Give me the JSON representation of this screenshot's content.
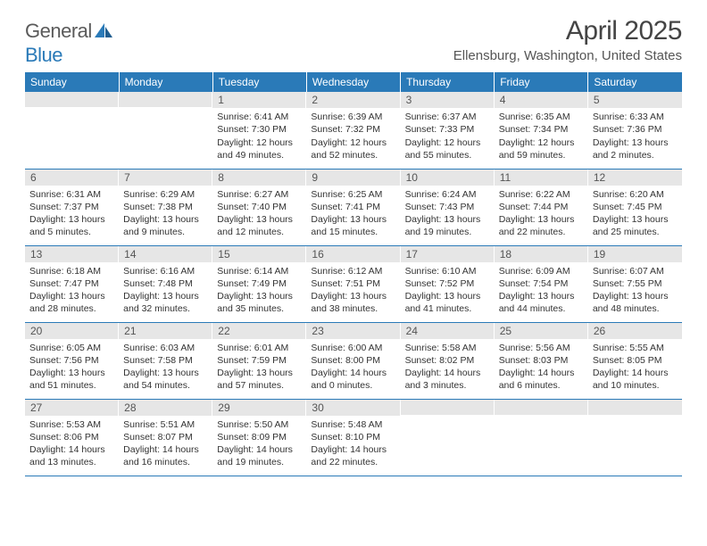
{
  "brand": {
    "word1": "General",
    "word2": "Blue"
  },
  "title": "April 2025",
  "location": "Ellensburg, Washington, United States",
  "colors": {
    "header_bg": "#2a7ab8",
    "header_text": "#ffffff",
    "daynum_bg": "#e6e6e6",
    "border": "#2a7ab8",
    "logo_gray": "#5a5a5a",
    "logo_blue": "#2a7ab8"
  },
  "weekdays": [
    "Sunday",
    "Monday",
    "Tuesday",
    "Wednesday",
    "Thursday",
    "Friday",
    "Saturday"
  ],
  "weeks": [
    [
      {
        "num": "",
        "sunrise": "",
        "sunset": "",
        "daylight": ""
      },
      {
        "num": "",
        "sunrise": "",
        "sunset": "",
        "daylight": ""
      },
      {
        "num": "1",
        "sunrise": "Sunrise: 6:41 AM",
        "sunset": "Sunset: 7:30 PM",
        "daylight": "Daylight: 12 hours and 49 minutes."
      },
      {
        "num": "2",
        "sunrise": "Sunrise: 6:39 AM",
        "sunset": "Sunset: 7:32 PM",
        "daylight": "Daylight: 12 hours and 52 minutes."
      },
      {
        "num": "3",
        "sunrise": "Sunrise: 6:37 AM",
        "sunset": "Sunset: 7:33 PM",
        "daylight": "Daylight: 12 hours and 55 minutes."
      },
      {
        "num": "4",
        "sunrise": "Sunrise: 6:35 AM",
        "sunset": "Sunset: 7:34 PM",
        "daylight": "Daylight: 12 hours and 59 minutes."
      },
      {
        "num": "5",
        "sunrise": "Sunrise: 6:33 AM",
        "sunset": "Sunset: 7:36 PM",
        "daylight": "Daylight: 13 hours and 2 minutes."
      }
    ],
    [
      {
        "num": "6",
        "sunrise": "Sunrise: 6:31 AM",
        "sunset": "Sunset: 7:37 PM",
        "daylight": "Daylight: 13 hours and 5 minutes."
      },
      {
        "num": "7",
        "sunrise": "Sunrise: 6:29 AM",
        "sunset": "Sunset: 7:38 PM",
        "daylight": "Daylight: 13 hours and 9 minutes."
      },
      {
        "num": "8",
        "sunrise": "Sunrise: 6:27 AM",
        "sunset": "Sunset: 7:40 PM",
        "daylight": "Daylight: 13 hours and 12 minutes."
      },
      {
        "num": "9",
        "sunrise": "Sunrise: 6:25 AM",
        "sunset": "Sunset: 7:41 PM",
        "daylight": "Daylight: 13 hours and 15 minutes."
      },
      {
        "num": "10",
        "sunrise": "Sunrise: 6:24 AM",
        "sunset": "Sunset: 7:43 PM",
        "daylight": "Daylight: 13 hours and 19 minutes."
      },
      {
        "num": "11",
        "sunrise": "Sunrise: 6:22 AM",
        "sunset": "Sunset: 7:44 PM",
        "daylight": "Daylight: 13 hours and 22 minutes."
      },
      {
        "num": "12",
        "sunrise": "Sunrise: 6:20 AM",
        "sunset": "Sunset: 7:45 PM",
        "daylight": "Daylight: 13 hours and 25 minutes."
      }
    ],
    [
      {
        "num": "13",
        "sunrise": "Sunrise: 6:18 AM",
        "sunset": "Sunset: 7:47 PM",
        "daylight": "Daylight: 13 hours and 28 minutes."
      },
      {
        "num": "14",
        "sunrise": "Sunrise: 6:16 AM",
        "sunset": "Sunset: 7:48 PM",
        "daylight": "Daylight: 13 hours and 32 minutes."
      },
      {
        "num": "15",
        "sunrise": "Sunrise: 6:14 AM",
        "sunset": "Sunset: 7:49 PM",
        "daylight": "Daylight: 13 hours and 35 minutes."
      },
      {
        "num": "16",
        "sunrise": "Sunrise: 6:12 AM",
        "sunset": "Sunset: 7:51 PM",
        "daylight": "Daylight: 13 hours and 38 minutes."
      },
      {
        "num": "17",
        "sunrise": "Sunrise: 6:10 AM",
        "sunset": "Sunset: 7:52 PM",
        "daylight": "Daylight: 13 hours and 41 minutes."
      },
      {
        "num": "18",
        "sunrise": "Sunrise: 6:09 AM",
        "sunset": "Sunset: 7:54 PM",
        "daylight": "Daylight: 13 hours and 44 minutes."
      },
      {
        "num": "19",
        "sunrise": "Sunrise: 6:07 AM",
        "sunset": "Sunset: 7:55 PM",
        "daylight": "Daylight: 13 hours and 48 minutes."
      }
    ],
    [
      {
        "num": "20",
        "sunrise": "Sunrise: 6:05 AM",
        "sunset": "Sunset: 7:56 PM",
        "daylight": "Daylight: 13 hours and 51 minutes."
      },
      {
        "num": "21",
        "sunrise": "Sunrise: 6:03 AM",
        "sunset": "Sunset: 7:58 PM",
        "daylight": "Daylight: 13 hours and 54 minutes."
      },
      {
        "num": "22",
        "sunrise": "Sunrise: 6:01 AM",
        "sunset": "Sunset: 7:59 PM",
        "daylight": "Daylight: 13 hours and 57 minutes."
      },
      {
        "num": "23",
        "sunrise": "Sunrise: 6:00 AM",
        "sunset": "Sunset: 8:00 PM",
        "daylight": "Daylight: 14 hours and 0 minutes."
      },
      {
        "num": "24",
        "sunrise": "Sunrise: 5:58 AM",
        "sunset": "Sunset: 8:02 PM",
        "daylight": "Daylight: 14 hours and 3 minutes."
      },
      {
        "num": "25",
        "sunrise": "Sunrise: 5:56 AM",
        "sunset": "Sunset: 8:03 PM",
        "daylight": "Daylight: 14 hours and 6 minutes."
      },
      {
        "num": "26",
        "sunrise": "Sunrise: 5:55 AM",
        "sunset": "Sunset: 8:05 PM",
        "daylight": "Daylight: 14 hours and 10 minutes."
      }
    ],
    [
      {
        "num": "27",
        "sunrise": "Sunrise: 5:53 AM",
        "sunset": "Sunset: 8:06 PM",
        "daylight": "Daylight: 14 hours and 13 minutes."
      },
      {
        "num": "28",
        "sunrise": "Sunrise: 5:51 AM",
        "sunset": "Sunset: 8:07 PM",
        "daylight": "Daylight: 14 hours and 16 minutes."
      },
      {
        "num": "29",
        "sunrise": "Sunrise: 5:50 AM",
        "sunset": "Sunset: 8:09 PM",
        "daylight": "Daylight: 14 hours and 19 minutes."
      },
      {
        "num": "30",
        "sunrise": "Sunrise: 5:48 AM",
        "sunset": "Sunset: 8:10 PM",
        "daylight": "Daylight: 14 hours and 22 minutes."
      },
      {
        "num": "",
        "sunrise": "",
        "sunset": "",
        "daylight": ""
      },
      {
        "num": "",
        "sunrise": "",
        "sunset": "",
        "daylight": ""
      },
      {
        "num": "",
        "sunrise": "",
        "sunset": "",
        "daylight": ""
      }
    ]
  ]
}
